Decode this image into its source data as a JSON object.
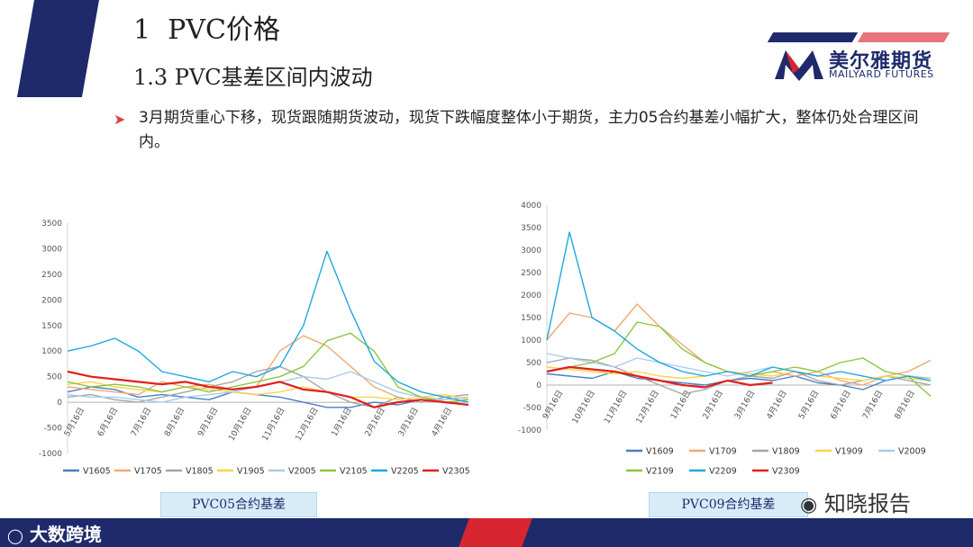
{
  "header": {
    "title": "1  PVC价格",
    "subtitle": "1.3 PVC基差区间内波动",
    "bullet": "3月期货重心下移，现货跟随期货波动，现货下跌幅度整体小于期货，主力05合约基差小幅扩大，整体仍处合理区间内。"
  },
  "logo": {
    "cn": "美尔雅期货",
    "en": "MAILYARD FUTURES"
  },
  "footer": {
    "brand": "大数跨境",
    "watermark": "知晓报告"
  },
  "colors": {
    "navy": "#1f2a6b",
    "accent_red": "#d7262f",
    "series": [
      "#4a7fc1",
      "#f0a875",
      "#a5a5a5",
      "#ffd24a",
      "#a9cbe9",
      "#8cc63f",
      "#1fa7e0",
      "#e0201c"
    ]
  },
  "chart_data": [
    {
      "type": "line",
      "caption": "PVC05合约基差",
      "ylim": [
        -1000,
        3500
      ],
      "yticks": [
        "3500",
        "3000",
        "2500",
        "2000",
        "1500",
        "1000",
        "500",
        "0",
        "-500",
        "-1000"
      ],
      "xticks": [
        "5月16日",
        "6月16日",
        "7月16日",
        "8月16日",
        "9月16日",
        "10月16日",
        "11月16日",
        "12月16日",
        "1月16日",
        "2月16日",
        "3月16日",
        "4月16日"
      ],
      "series": [
        {
          "name": "V1605",
          "values": [
            200,
            300,
            250,
            100,
            150,
            100,
            50,
            200,
            150,
            100,
            0,
            -100,
            -100,
            0,
            -50,
            50,
            0,
            -50
          ]
        },
        {
          "name": "V1705",
          "values": [
            300,
            250,
            200,
            150,
            400,
            300,
            350,
            250,
            300,
            1000,
            1300,
            1100,
            700,
            300,
            100,
            0,
            50,
            100
          ]
        },
        {
          "name": "V1805",
          "values": [
            100,
            150,
            50,
            0,
            100,
            200,
            300,
            400,
            600,
            700,
            500,
            200,
            0,
            -100,
            100,
            0,
            100,
            150
          ]
        },
        {
          "name": "V1905",
          "values": [
            350,
            400,
            300,
            250,
            200,
            300,
            250,
            200,
            150,
            200,
            300,
            200,
            100,
            100,
            50,
            100,
            150,
            50
          ]
        },
        {
          "name": "V2005",
          "values": [
            150,
            100,
            100,
            50,
            0,
            100,
            150,
            200,
            300,
            400,
            500,
            450,
            600,
            400,
            200,
            100,
            50,
            100
          ]
        },
        {
          "name": "V2105",
          "values": [
            400,
            300,
            350,
            300,
            200,
            300,
            200,
            300,
            400,
            500,
            700,
            1200,
            1350,
            1000,
            300,
            100,
            0,
            50
          ]
        },
        {
          "name": "V2205",
          "values": [
            1000,
            1100,
            1250,
            1000,
            600,
            500,
            400,
            600,
            500,
            700,
            1500,
            2950,
            1800,
            800,
            400,
            200,
            100,
            0
          ]
        },
        {
          "name": "V2305",
          "values": [
            600,
            500,
            450,
            400,
            350,
            400,
            300,
            250,
            300,
            400,
            250,
            200,
            100,
            -100,
            0,
            50,
            0,
            -50
          ]
        }
      ]
    },
    {
      "type": "line",
      "caption": "PVC09合约基差",
      "ylim": [
        -1000,
        4000
      ],
      "yticks": [
        "4000",
        "3500",
        "3000",
        "2500",
        "2000",
        "1500",
        "1000",
        "500",
        "0",
        "-500",
        "-1000"
      ],
      "xticks": [
        "9月16日",
        "10月16日",
        "11月16日",
        "12月16日",
        "1月16日",
        "2月16日",
        "3月16日",
        "4月16日",
        "5月16日",
        "6月16日",
        "7月16日",
        "8月16日"
      ],
      "series": [
        {
          "name": "V1609",
          "values": [
            250,
            200,
            150,
            300,
            150,
            100,
            50,
            0,
            100,
            150,
            100,
            200,
            50,
            0,
            -100,
            100,
            200,
            150
          ]
        },
        {
          "name": "V1709",
          "values": [
            1000,
            1600,
            1500,
            1200,
            1800,
            1300,
            900,
            500,
            300,
            200,
            300,
            200,
            300,
            100,
            0,
            200,
            300,
            550
          ]
        },
        {
          "name": "V1809",
          "values": [
            500,
            600,
            550,
            400,
            200,
            0,
            -200,
            -100,
            100,
            200,
            150,
            300,
            100,
            0,
            100,
            200,
            100,
            0
          ]
        },
        {
          "name": "V1909",
          "values": [
            400,
            350,
            300,
            250,
            300,
            200,
            150,
            200,
            300,
            250,
            200,
            300,
            200,
            150,
            100,
            200,
            150,
            100
          ]
        },
        {
          "name": "V2009",
          "values": [
            700,
            600,
            500,
            400,
            600,
            500,
            400,
            300,
            200,
            300,
            400,
            300,
            200,
            300,
            200,
            100,
            200,
            150
          ]
        },
        {
          "name": "V2109",
          "values": [
            300,
            400,
            500,
            700,
            1400,
            1300,
            800,
            500,
            300,
            200,
            300,
            400,
            300,
            500,
            600,
            300,
            200,
            -250
          ]
        },
        {
          "name": "V2209",
          "values": [
            1000,
            3400,
            1500,
            1200,
            800,
            500,
            300,
            200,
            300,
            200,
            400,
            300,
            200,
            300,
            200,
            100,
            200,
            100
          ]
        },
        {
          "name": "V2309",
          "values": [
            300,
            400,
            350,
            300,
            200,
            100,
            0,
            -50,
            100,
            0,
            50
          ]
        }
      ]
    }
  ]
}
